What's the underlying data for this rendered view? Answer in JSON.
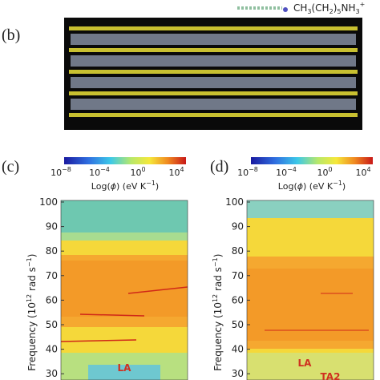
{
  "formula": [
    "CH",
    "3",
    "(CH",
    "2",
    ")",
    "5",
    "NH",
    "3",
    "+"
  ],
  "panels": [
    {
      "label": "(b)"
    },
    {
      "label": "(c)",
      "colorbar": {
        "ticks": [
          {
            "base": "10",
            "exp": "−8"
          },
          {
            "base": "10",
            "exp": "−4"
          },
          {
            "base": "10",
            "exp": "0"
          },
          {
            "base": "10",
            "exp": "4"
          }
        ],
        "label": [
          "Log(",
          "ϕ",
          ") (eV K",
          "−1",
          ")"
        ]
      },
      "ylabel": [
        "Frequency (10",
        "12",
        " rad s",
        "−1",
        ")"
      ],
      "ylim": [
        27,
        100
      ],
      "yticks": [
        30,
        40,
        50,
        60,
        70,
        80,
        90,
        100
      ],
      "annotations": [
        {
          "text": "LA",
          "y": 31
        }
      ]
    },
    {
      "label": "(d)",
      "colorbar": {
        "ticks": [
          {
            "base": "10",
            "exp": "−8"
          },
          {
            "base": "10",
            "exp": "−4"
          },
          {
            "base": "10",
            "exp": "0"
          },
          {
            "base": "10",
            "exp": "4"
          }
        ],
        "label": [
          "Log(",
          "ϕ",
          ") (eV K",
          "−1",
          ")"
        ]
      },
      "ylabel": [
        "Frequency (10",
        "12",
        " rad s",
        "−1",
        ")"
      ],
      "ylim": [
        27,
        100
      ],
      "yticks": [
        30,
        40,
        50,
        60,
        70,
        80,
        90,
        100
      ],
      "annotations": [
        {
          "text": "LA",
          "y": 33
        },
        {
          "text": "TA2",
          "y": 27.5
        }
      ]
    }
  ]
}
